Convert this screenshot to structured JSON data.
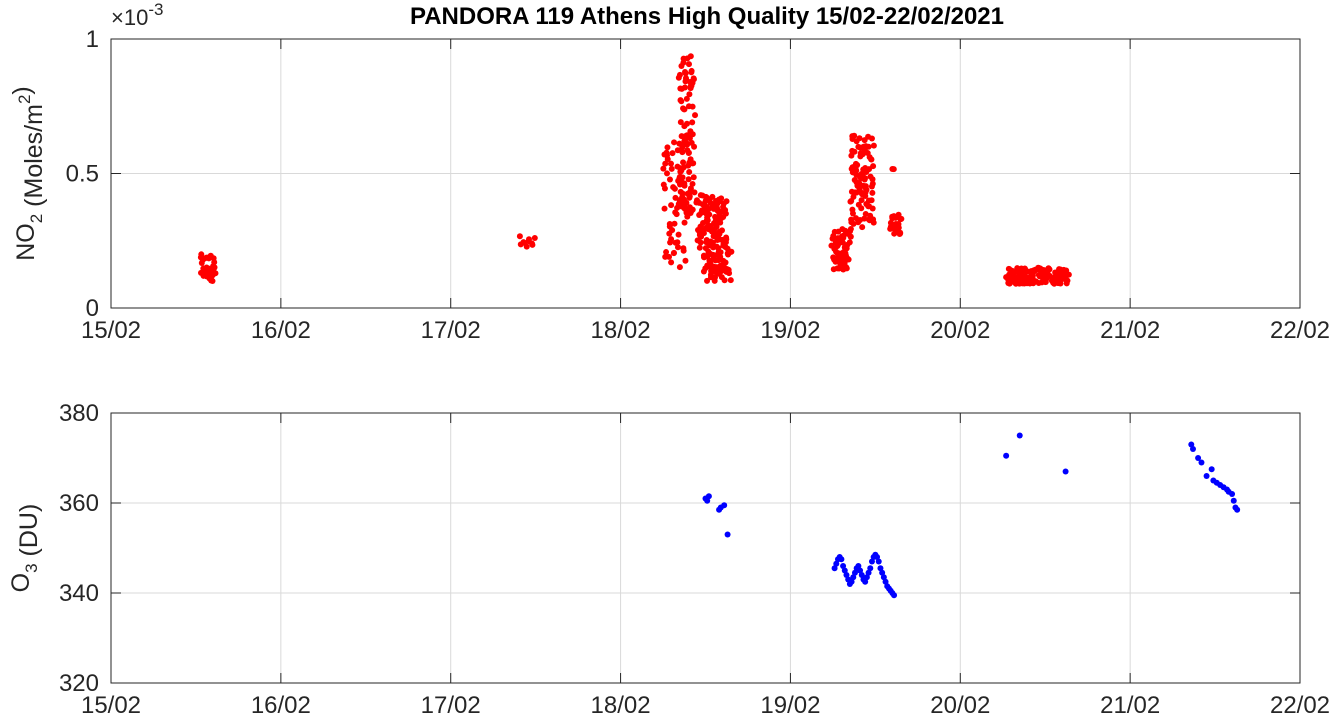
{
  "chart_data": [
    {
      "type": "scatter",
      "title": "PANDORA 119 Athens High Quality 15/02-22/02/2021",
      "ylabel": "NO_2 (Moles/m^2)",
      "y_exponent": "×10^-3",
      "xlim": [
        "15/02",
        "22/02"
      ],
      "ylim": [
        0,
        1
      ],
      "x_ticks": [
        "15/02",
        "16/02",
        "17/02",
        "18/02",
        "19/02",
        "20/02",
        "21/02",
        "22/02"
      ],
      "y_ticks": [
        "0",
        "0.5",
        "1"
      ],
      "grid": true,
      "marker_color": "#ff0000",
      "x_unit": "days since 15/02",
      "clusters": [
        {
          "x": [
            0.52,
            0.62
          ],
          "y": [
            0.1,
            0.2
          ],
          "n": 40
        },
        {
          "x": [
            2.4,
            2.5
          ],
          "y": [
            0.2,
            0.27
          ],
          "n": 10
        },
        {
          "x": [
            3.3,
            3.34
          ],
          "y": [
            0.22,
            0.32
          ],
          "n": 3
        },
        {
          "x": [
            3.48,
            3.66
          ],
          "y": [
            0.1,
            0.21
          ],
          "n": 60
        },
        {
          "x": [
            3.24,
            3.4
          ],
          "y": [
            0.15,
            0.62
          ],
          "n": 60
        },
        {
          "x": [
            3.34,
            3.44
          ],
          "y": [
            0.35,
            0.95
          ],
          "n": 100
        },
        {
          "x": [
            3.44,
            3.64
          ],
          "y": [
            0.22,
            0.42
          ],
          "n": 120
        },
        {
          "x": [
            4.24,
            4.36
          ],
          "y": [
            0.14,
            0.3
          ],
          "n": 60
        },
        {
          "x": [
            4.34,
            4.5
          ],
          "y": [
            0.3,
            0.65
          ],
          "n": 100
        },
        {
          "x": [
            4.58,
            4.66
          ],
          "y": [
            0.27,
            0.35
          ],
          "n": 25
        },
        {
          "x": [
            4.6,
            4.61
          ],
          "y": [
            0.51,
            0.52
          ],
          "n": 2
        },
        {
          "x": [
            5.25,
            5.65
          ],
          "y": [
            0.09,
            0.15
          ],
          "n": 130
        }
      ]
    },
    {
      "type": "scatter",
      "ylabel": "O_3 (DU)",
      "xlim": [
        "15/02",
        "22/02"
      ],
      "ylim": [
        320,
        380
      ],
      "x_ticks": [
        "15/02",
        "16/02",
        "17/02",
        "18/02",
        "19/02",
        "20/02",
        "21/02",
        "22/02"
      ],
      "y_ticks": [
        "320",
        "340",
        "360",
        "380"
      ],
      "grid": true,
      "marker_color": "#0000ff",
      "x_unit": "days since 15/02",
      "points": [
        [
          3.5,
          361.0
        ],
        [
          3.51,
          360.5
        ],
        [
          3.52,
          361.5
        ],
        [
          3.58,
          358.5
        ],
        [
          3.59,
          359.0
        ],
        [
          3.61,
          359.5
        ],
        [
          3.63,
          353.0
        ],
        [
          4.26,
          345.5
        ],
        [
          4.27,
          346.5
        ],
        [
          4.28,
          347.5
        ],
        [
          4.29,
          348.0
        ],
        [
          4.3,
          347.5
        ],
        [
          4.31,
          346.0
        ],
        [
          4.32,
          345.0
        ],
        [
          4.33,
          344.0
        ],
        [
          4.34,
          343.0
        ],
        [
          4.35,
          342.0
        ],
        [
          4.36,
          342.5
        ],
        [
          4.37,
          343.5
        ],
        [
          4.38,
          344.5
        ],
        [
          4.39,
          345.5
        ],
        [
          4.4,
          346.0
        ],
        [
          4.41,
          345.0
        ],
        [
          4.42,
          344.0
        ],
        [
          4.43,
          343.0
        ],
        [
          4.44,
          342.5
        ],
        [
          4.45,
          343.5
        ],
        [
          4.46,
          344.5
        ],
        [
          4.47,
          345.5
        ],
        [
          4.48,
          347.0
        ],
        [
          4.49,
          348.0
        ],
        [
          4.5,
          348.5
        ],
        [
          4.51,
          348.0
        ],
        [
          4.52,
          347.0
        ],
        [
          4.53,
          345.5
        ],
        [
          4.54,
          344.5
        ],
        [
          4.55,
          343.5
        ],
        [
          4.56,
          342.5
        ],
        [
          4.57,
          341.5
        ],
        [
          4.58,
          341.0
        ],
        [
          4.59,
          340.5
        ],
        [
          4.6,
          340.0
        ],
        [
          4.61,
          339.5
        ],
        [
          5.27,
          370.5
        ],
        [
          5.35,
          375.0
        ],
        [
          5.62,
          367.0
        ],
        [
          6.36,
          373.0
        ],
        [
          6.37,
          372.0
        ],
        [
          6.4,
          370.0
        ],
        [
          6.42,
          369.0
        ],
        [
          6.45,
          366.0
        ],
        [
          6.48,
          367.5
        ],
        [
          6.49,
          365.0
        ],
        [
          6.51,
          364.5
        ],
        [
          6.53,
          364.0
        ],
        [
          6.55,
          363.5
        ],
        [
          6.57,
          363.0
        ],
        [
          6.58,
          362.5
        ],
        [
          6.6,
          362.0
        ],
        [
          6.61,
          360.5
        ],
        [
          6.62,
          359.0
        ],
        [
          6.63,
          358.5
        ]
      ]
    }
  ]
}
